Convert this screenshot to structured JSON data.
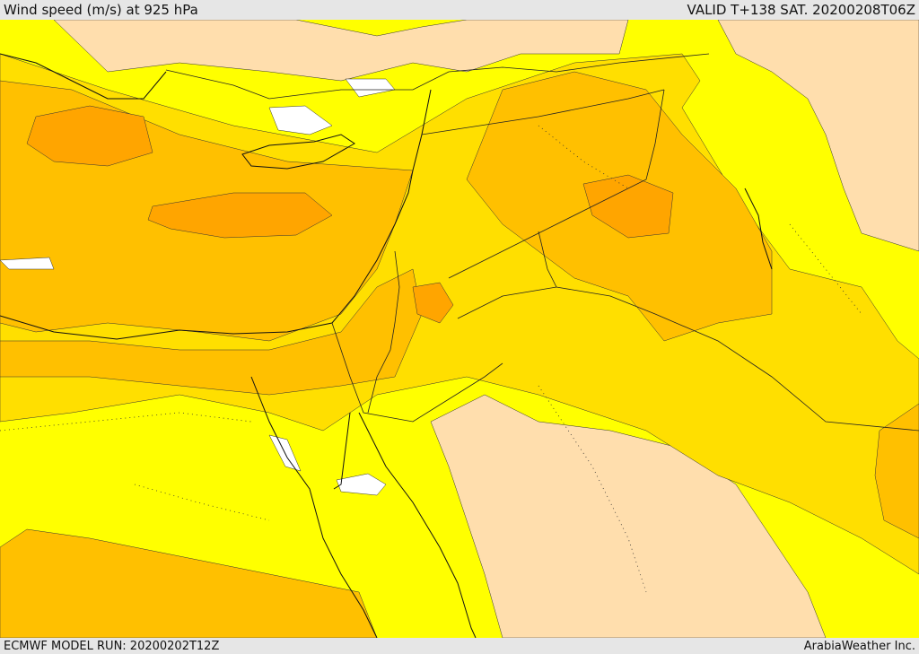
{
  "header": {
    "title": "Wind speed (m/s) at 925 hPa",
    "valid": "VALID T+138 SAT. 20200208T06Z"
  },
  "footer": {
    "model_run": "ECMWF MODEL RUN: 20200202T12Z",
    "credit": "ArabiaWeather Inc."
  },
  "map": {
    "field": "wind speed",
    "level": "925 hPa",
    "palette": {
      "calm": "#ffffff",
      "low": "#ffff00",
      "light": "#ffdf00",
      "moderate": "#ffc000",
      "strong": "#ffa500",
      "land_tan": "#ffdead"
    }
  }
}
